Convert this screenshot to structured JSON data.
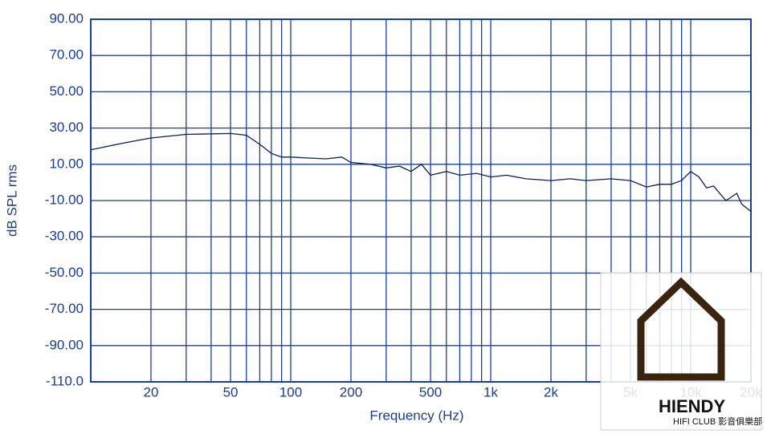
{
  "chart_data": {
    "type": "line",
    "x_label": "Frequency (Hz)",
    "y_label": "dB SPL rms",
    "x_scale": "log",
    "grid": true,
    "xlim": [
      10,
      20000
    ],
    "ylim": [
      -110,
      90
    ],
    "xticks": [
      20,
      50,
      100,
      200,
      500,
      {
        "value": 1000,
        "label": "1k"
      },
      {
        "value": 2000,
        "label": "2k"
      },
      {
        "value": 5000,
        "label": "5k"
      },
      {
        "value": 10000,
        "label": "10k"
      },
      {
        "value": 20000,
        "label": "20k"
      }
    ],
    "xgrid": [
      10,
      20,
      30,
      40,
      50,
      60,
      70,
      80,
      90,
      100,
      200,
      300,
      400,
      500,
      600,
      700,
      800,
      900,
      1000,
      2000,
      3000,
      4000,
      5000,
      6000,
      7000,
      8000,
      9000,
      10000,
      20000
    ],
    "yticks": [
      {
        "value": 90,
        "label": "90.00"
      },
      {
        "value": 70,
        "label": "70.00"
      },
      {
        "value": 50,
        "label": "50.00"
      },
      {
        "value": 30,
        "label": "30.00"
      },
      {
        "value": 10,
        "label": "10.00"
      },
      {
        "value": -10,
        "label": "-10.00"
      },
      {
        "value": -30,
        "label": "-30.00"
      },
      {
        "value": -50,
        "label": "-50.00"
      },
      {
        "value": -70,
        "label": "-70.00"
      },
      {
        "value": -90,
        "label": "-90.00"
      },
      {
        "value": -110,
        "label": "-110.0"
      }
    ],
    "x": [
      10,
      15,
      20,
      30,
      50,
      60,
      70,
      80,
      90,
      100,
      120,
      150,
      180,
      200,
      250,
      300,
      350,
      400,
      450,
      500,
      600,
      700,
      850,
      1000,
      1200,
      1500,
      2000,
      2500,
      3000,
      4000,
      5000,
      6000,
      7000,
      8000,
      9000,
      10000,
      11000,
      12000,
      13000,
      15000,
      16000,
      17000,
      18000,
      20000
    ],
    "series": [
      {
        "color": "#0b1e5b",
        "values": [
          18,
          22,
          24.5,
          26.5,
          27,
          26,
          21,
          16,
          14,
          14,
          13.5,
          13,
          14,
          11,
          10,
          8,
          9,
          6,
          10,
          4,
          6,
          4,
          5,
          3,
          4,
          2,
          1,
          2,
          1,
          2,
          1,
          -2.5,
          -1,
          -1,
          1,
          6,
          3,
          -3,
          -2,
          -10,
          -8,
          -6,
          -12,
          -16
        ]
      }
    ],
    "watermark": {
      "brand": "HIENDY",
      "club": "HIFI CLUB 影音俱樂部"
    }
  }
}
